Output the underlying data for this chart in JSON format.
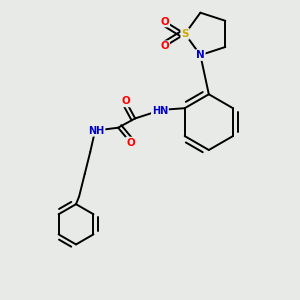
{
  "bg_color": "#e8eae8",
  "bond_color": "#000000",
  "atom_colors": {
    "N": "#0000cd",
    "O": "#ff0000",
    "S": "#ccaa00",
    "C": "#000000",
    "H": "#5a8a8a"
  },
  "figsize": [
    3.0,
    3.0
  ],
  "dpi": 100,
  "lw": 1.4
}
